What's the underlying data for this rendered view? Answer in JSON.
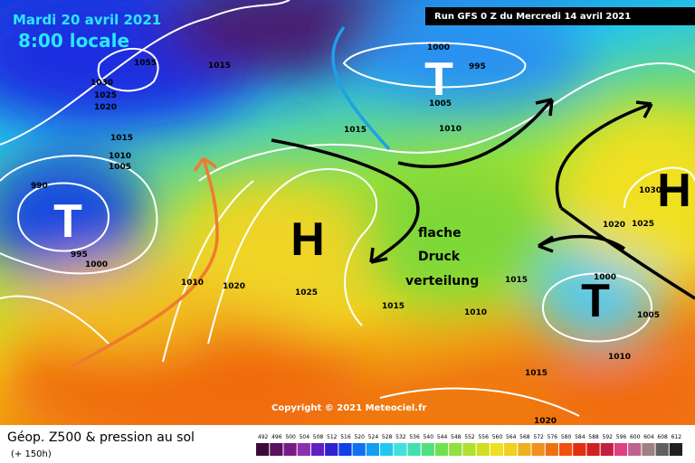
{
  "header": {
    "date": "Mardi 20 avril 2021",
    "time": "8:00 locale",
    "run": "Run GFS 0 Z du Mercredi 14 avril 2021"
  },
  "pressure_systems": [
    "T",
    "H",
    "T",
    "H",
    "T"
  ],
  "isobar_labels": [
    "1055",
    "1030",
    "1025",
    "1020",
    "1015",
    "1015",
    "1010",
    "1005",
    "990",
    "995",
    "1000",
    "1000",
    "995",
    "1005",
    "1015",
    "1010",
    "1030",
    "1025",
    "1020",
    "1010",
    "1020",
    "1025",
    "1015",
    "1015",
    "1010",
    "1000",
    "1005",
    "1010",
    "1015",
    "1020"
  ],
  "annotation": [
    "flache",
    "Druck",
    "verteilung"
  ],
  "copyright": "Copyright © 2021 Meteociel.fr",
  "footer": {
    "title": "Géop. Z500 & pression au sol",
    "subtitle": "(+ 150h)"
  },
  "legend": {
    "values": [
      492,
      496,
      500,
      504,
      508,
      512,
      516,
      520,
      524,
      528,
      532,
      536,
      540,
      544,
      548,
      552,
      556,
      560,
      564,
      568,
      572,
      576,
      580,
      584,
      588,
      592,
      596,
      600,
      604,
      608,
      612
    ]
  }
}
